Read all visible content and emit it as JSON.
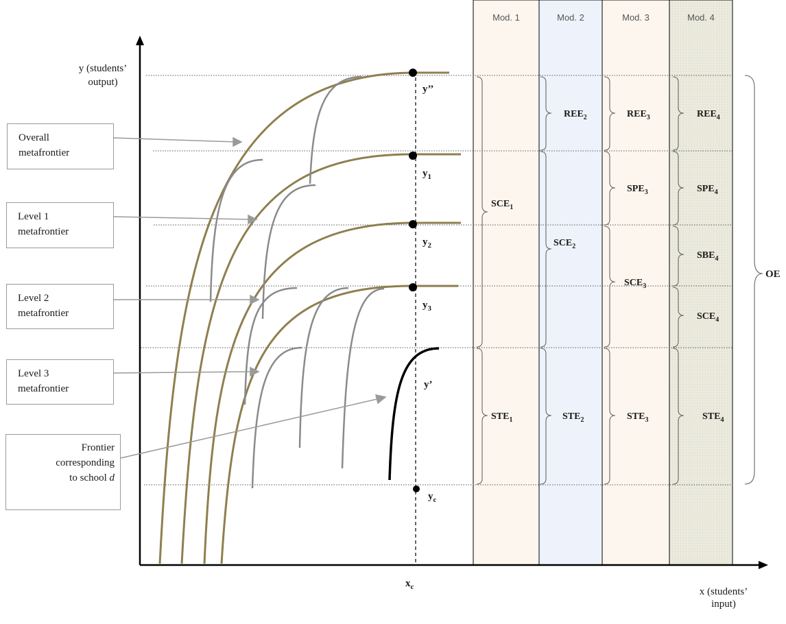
{
  "axes": {
    "y_label_line1": "y (students’",
    "y_label_line2": "output)",
    "x_label_line1": "x (students’",
    "x_label_line2": "input)",
    "x_point": "x",
    "x_point_sub": "c"
  },
  "modules": [
    {
      "label": "Mod. 1",
      "fill": "#fdf6ee"
    },
    {
      "label": "Mod. 2",
      "fill": "#eef3fb"
    },
    {
      "label": "Mod. 3",
      "fill": "#fdf6ee"
    },
    {
      "label": "Mod. 4",
      "fill": "#ecebdf"
    }
  ],
  "points": [
    {
      "base": "y’’",
      "sub": ""
    },
    {
      "base": "y",
      "sub": "1"
    },
    {
      "base": "y",
      "sub": "2"
    },
    {
      "base": "y",
      "sub": "3"
    },
    {
      "base": "y’",
      "sub": ""
    },
    {
      "base": "y",
      "sub": "c"
    }
  ],
  "labels": {
    "overall": [
      "Overall",
      "metafrontier"
    ],
    "level1": [
      "Level 1",
      "metafrontier"
    ],
    "level2": [
      "Level 2",
      "metafrontier"
    ],
    "level3": [
      "Level 3",
      "metafrontier"
    ],
    "school": [
      "Frontier",
      "corresponding",
      "to school",
      "d"
    ]
  },
  "efficiency_terms": {
    "mod1": [
      {
        "base": "SCE",
        "sub": "1"
      },
      {
        "base": "STE",
        "sub": "1"
      }
    ],
    "mod2": [
      {
        "base": "REE",
        "sub": "2"
      },
      {
        "base": "SCE",
        "sub": "2"
      },
      {
        "base": "STE",
        "sub": "2"
      }
    ],
    "mod3": [
      {
        "base": "REE",
        "sub": "3"
      },
      {
        "base": "SPE",
        "sub": "3"
      },
      {
        "base": "SCE",
        "sub": "3"
      },
      {
        "base": "STE",
        "sub": "3"
      }
    ],
    "mod4": [
      {
        "base": "REE",
        "sub": "4"
      },
      {
        "base": "SPE",
        "sub": "4"
      },
      {
        "base": "SBE",
        "sub": "4"
      },
      {
        "base": "SCE",
        "sub": "4"
      },
      {
        "base": "STE",
        "sub": "4"
      }
    ],
    "overall": "OE"
  },
  "colors": {
    "metafrontier": "#8e7f4e",
    "group_frontier": "#8a8a8a",
    "school_frontier": "#000000",
    "axis": "#000000",
    "guide": "#555555"
  }
}
